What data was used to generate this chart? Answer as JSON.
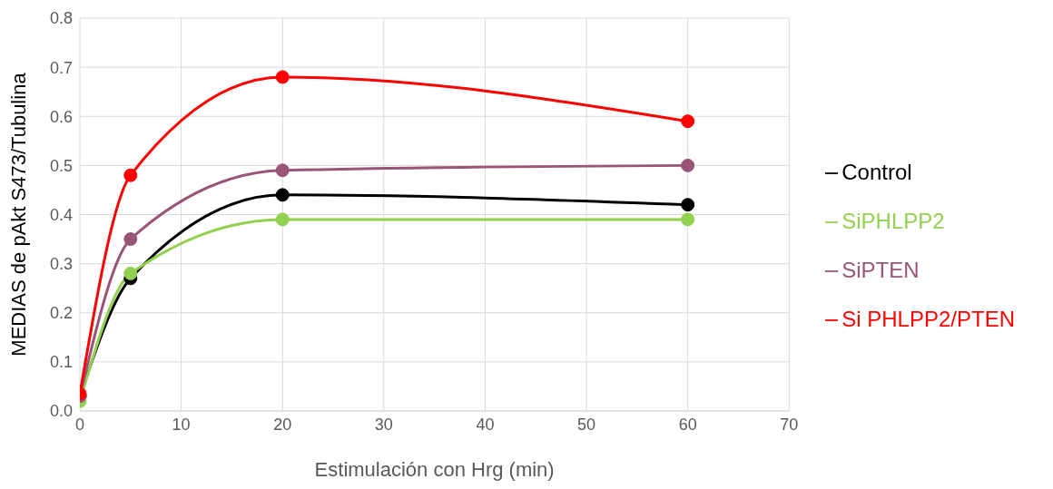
{
  "chart_data": {
    "type": "line",
    "xlabel": "Estimulación con Hrg (min)",
    "ylabel": "MEDIAS de pAkt S473/Tubulina",
    "x": [
      0,
      5,
      20,
      60
    ],
    "series": [
      {
        "name": "Control",
        "color": "#000000",
        "values": [
          0.03,
          0.27,
          0.44,
          0.42
        ]
      },
      {
        "name": "SiPHLPP2",
        "color": "#92d050",
        "values": [
          0.02,
          0.28,
          0.39,
          0.39
        ]
      },
      {
        "name": "SiPTEN",
        "color": "#995577",
        "values": [
          0.03,
          0.35,
          0.49,
          0.5
        ]
      },
      {
        "name": "Si PHLPP2/PTEN",
        "color": "#ff0000",
        "values": [
          0.035,
          0.48,
          0.68,
          0.59
        ]
      }
    ],
    "xlim": [
      0,
      70
    ],
    "xticks": [
      0,
      10,
      20,
      30,
      40,
      50,
      60,
      70
    ],
    "ylim": [
      0,
      0.8
    ],
    "yticks": [
      {
        "value": 0,
        "label": "0.0"
      },
      {
        "value": 0.1,
        "label": "0.1"
      },
      {
        "value": 0.2,
        "label": "0.2"
      },
      {
        "value": 0.3,
        "label": "0.3"
      },
      {
        "value": 0.4,
        "label": "0.4"
      },
      {
        "value": 0.5,
        "label": "0.5"
      },
      {
        "value": 0.6,
        "label": "0.6"
      },
      {
        "value": 0.7,
        "label": "0.7"
      },
      {
        "value": 0.8,
        "label": "0.8"
      }
    ],
    "grid": true,
    "legend": "right",
    "marker": "circle",
    "line_style": "solid"
  }
}
